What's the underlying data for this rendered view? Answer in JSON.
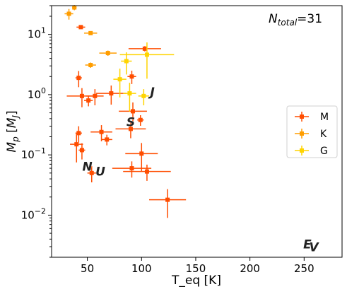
{
  "chart_data": {
    "type": "scatter",
    "xlabel": "T_eq [K]",
    "ylabel": "M_p [M_J]",
    "x_unit": "[K]",
    "y_unit": "[M_J]",
    "xlim": [
      17,
      285
    ],
    "ylim": [
      0.002,
      30
    ],
    "yscale": "log",
    "x_ticks": [
      50,
      100,
      150,
      200,
      250
    ],
    "x_tick_labels": [
      "50",
      "100",
      "150",
      "200",
      "250"
    ],
    "y_ticks": [
      0.01,
      0.1,
      1,
      10
    ],
    "y_tick_labels": [
      "10^-2",
      "10^-1",
      "10^0",
      "10^1"
    ],
    "grid": false,
    "legend_position": "center-right",
    "annotation": {
      "symbol": "N",
      "subscript": "total",
      "value": "=31"
    },
    "solar_system_labels": [
      {
        "letter": "J",
        "x": 110,
        "y": 0.95
      },
      {
        "letter": "S",
        "x": 90,
        "y": 0.3
      },
      {
        "letter": "N",
        "x": 50,
        "y": 0.055
      },
      {
        "letter": "U",
        "x": 62,
        "y": 0.045
      },
      {
        "letter": "E",
        "x": 253,
        "y": 0.0028
      },
      {
        "letter": "V",
        "x": 259,
        "y": 0.0025
      }
    ],
    "series": [
      {
        "name": "M",
        "color": "#ff4d00",
        "points": [
          {
            "x": 44,
            "y": 13.2,
            "xerr": 4,
            "yerr_rel": 0.06
          },
          {
            "x": 42,
            "y": 1.9,
            "xerr": 3,
            "yerr_rel": 0.3
          },
          {
            "x": 45,
            "y": 0.95,
            "xerr": 14,
            "yerr_rel": 0.35
          },
          {
            "x": 51,
            "y": 0.8,
            "xerr": 4,
            "yerr_rel": 0.2
          },
          {
            "x": 57,
            "y": 0.95,
            "xerr": 8,
            "yerr_rel": 0.3
          },
          {
            "x": 72,
            "y": 1.05,
            "xerr": 14,
            "yerr_rel": 0.35
          },
          {
            "x": 103,
            "y": 5.8,
            "xerr": 15,
            "yerr_rel": 0.1
          },
          {
            "x": 91,
            "y": 2.0,
            "xerr": 4,
            "yerr_rel": 0.25
          },
          {
            "x": 92,
            "y": 0.53,
            "xerr": 13,
            "yerr_rel": 0.4
          },
          {
            "x": 99,
            "y": 0.38,
            "xerr": 3,
            "yerr_rel": 0.2
          },
          {
            "x": 90,
            "y": 0.27,
            "xerr": 14,
            "yerr_rel": 0.3
          },
          {
            "x": 42,
            "y": 0.23,
            "xerr": 3,
            "yerr_rel": 0.3
          },
          {
            "x": 63,
            "y": 0.24,
            "xerr": 10,
            "yerr_rel": 0.3
          },
          {
            "x": 68,
            "y": 0.18,
            "xerr": 5,
            "yerr_rel": 0.2
          },
          {
            "x": 40,
            "y": 0.15,
            "xerr": 6,
            "yerr_rel": 0.5
          },
          {
            "x": 45,
            "y": 0.12,
            "xerr": 3,
            "yerr_rel": 0.3
          },
          {
            "x": 100,
            "y": 0.105,
            "xerr": 15,
            "yerr_rel": 0.5
          },
          {
            "x": 91,
            "y": 0.06,
            "xerr": 18,
            "yerr_rel": 0.3
          },
          {
            "x": 105,
            "y": 0.053,
            "xerr": 22,
            "yerr_rel": 0.3
          },
          {
            "x": 54,
            "y": 0.05,
            "xerr": 4,
            "yerr_rel": 0.3
          },
          {
            "x": 124,
            "y": 0.018,
            "xerr": 17,
            "yerr_rel": 0.5
          }
        ]
      },
      {
        "name": "K",
        "color": "#ff9d00",
        "points": [
          {
            "x": 33,
            "y": 22,
            "xerr": 4,
            "yerr_rel": 0.2
          },
          {
            "x": 38,
            "y": 28,
            "xerr": 2,
            "yerr_rel": 0.1
          },
          {
            "x": 53,
            "y": 10.5,
            "xerr": 6,
            "yerr_rel": 0.05
          },
          {
            "x": 53,
            "y": 3.1,
            "xerr": 5,
            "yerr_rel": 0.1
          },
          {
            "x": 69,
            "y": 4.9,
            "xerr": 8,
            "yerr_rel": 0.1
          }
        ]
      },
      {
        "name": "G",
        "color": "#ffd400",
        "points": [
          {
            "x": 86,
            "y": 3.6,
            "xerr": 5,
            "yerr_rel": 0.4
          },
          {
            "x": 80,
            "y": 1.8,
            "xerr": 6,
            "yerr_rel": 0.5
          },
          {
            "x": 105,
            "y": 4.6,
            "xerr": 25,
            "yerr_rel": 0.6
          },
          {
            "x": 89,
            "y": 1.05,
            "xerr": 6,
            "yerr_rel": 0.5
          },
          {
            "x": 102,
            "y": 0.95,
            "xerr": 5,
            "yerr_rel": 0.3
          }
        ]
      }
    ]
  }
}
